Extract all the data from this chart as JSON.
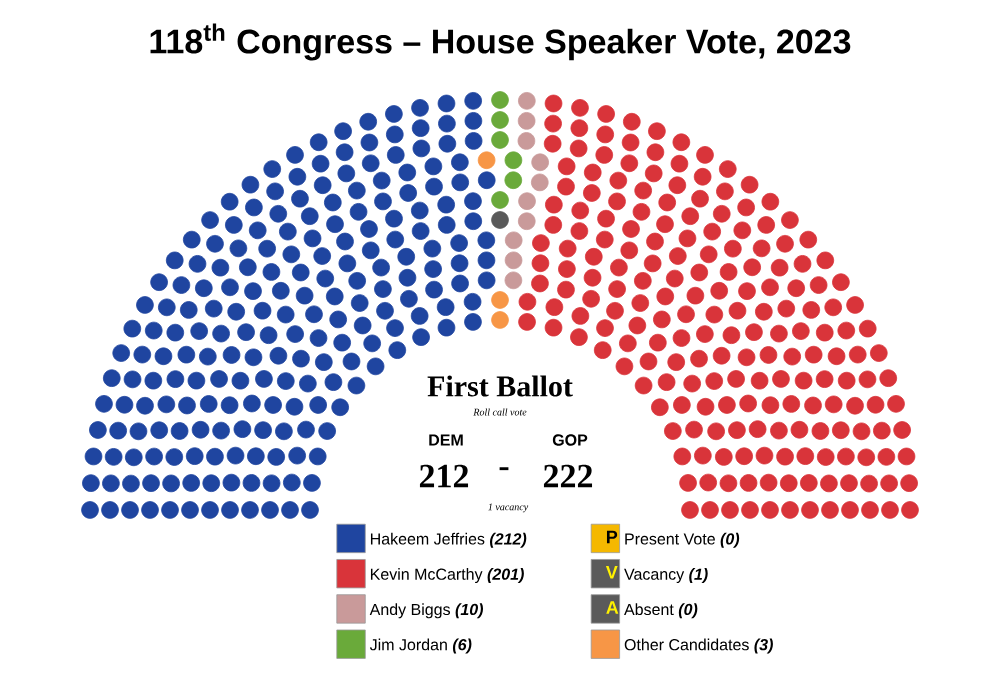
{
  "chart_data": {
    "type": "other",
    "title": "118$^{th}$ Congress – House Speaker Vote, 2023",
    "categories": [
      "Hakeem Jeffries",
      "Kevin McCarthy",
      "Andy Biggs",
      "Jim Jordan",
      "Present Vote",
      "Vacancy",
      "Absent",
      "Other Candidates"
    ],
    "value_labels": [
      "(212)",
      "(201)",
      "(10)",
      "(6)",
      "(0)",
      "(1)",
      "(0)",
      "(3)"
    ],
    "values": [
      212,
      201,
      10,
      6,
      0,
      1,
      0,
      3
    ],
    "colors": [
      "#1f45a0",
      "#d9343a",
      "#c99a9a",
      "#6aaa3a",
      "#f5b800",
      "#5a5a5a",
      "#5a5a5a",
      "#f79646"
    ],
    "annotations": [
      "First Ballot",
      "Roll call vote",
      "DEM",
      "GOP",
      "212",
      "-",
      "222",
      "1 vacancy",
      "P",
      "V",
      "A"
    ]
  }
}
